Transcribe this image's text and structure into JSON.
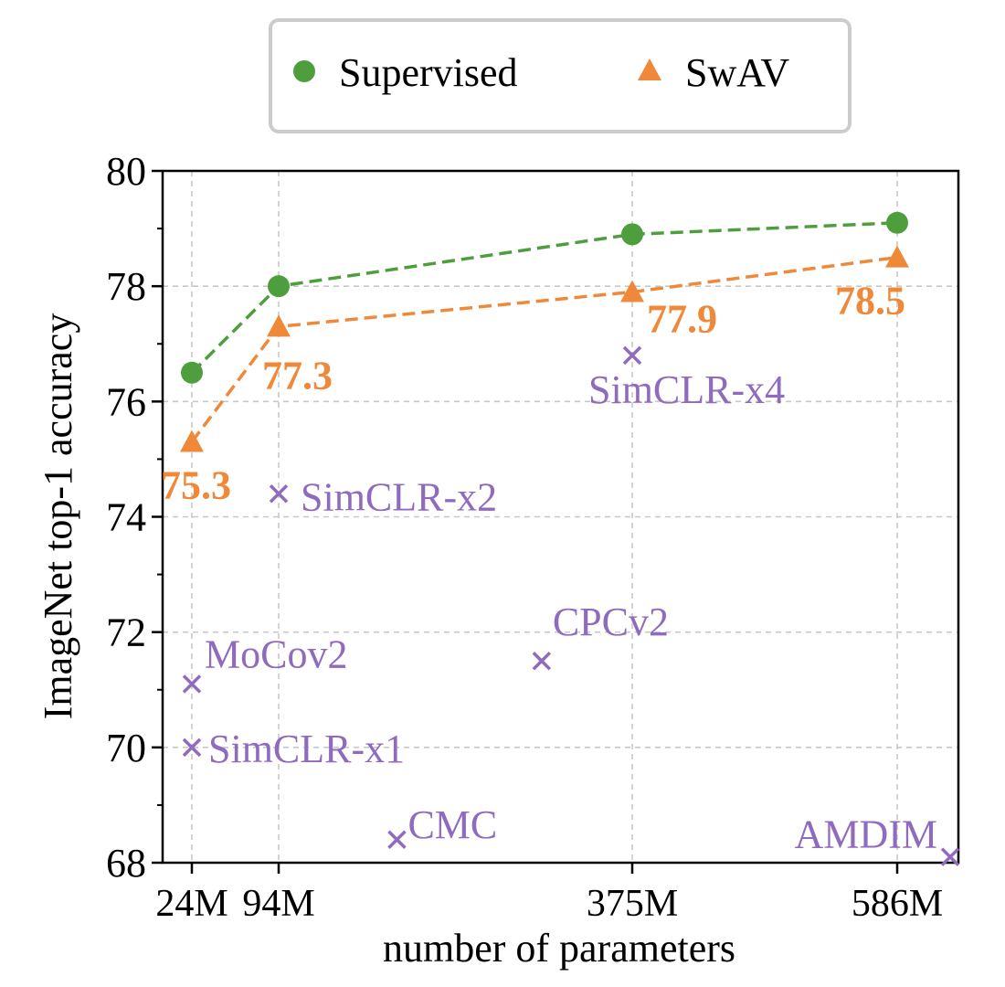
{
  "chart_data": {
    "type": "scatter",
    "xlabel": "number of parameters",
    "ylabel": "ImageNet top-1 accuracy",
    "x_ticks": [
      {
        "value": 24,
        "label": "24M"
      },
      {
        "value": 94,
        "label": "94M"
      },
      {
        "value": 375,
        "label": "375M"
      },
      {
        "value": 586,
        "label": "586M"
      }
    ],
    "xlim": [
      0,
      610
    ],
    "ylim": [
      68,
      80
    ],
    "y_ticks": [
      68,
      70,
      72,
      74,
      76,
      78,
      80
    ],
    "grid": true,
    "legend": {
      "placement": "top-center",
      "entries": [
        {
          "label": "Supervised",
          "marker": "circle",
          "color": "#4f9e3e"
        },
        {
          "label": "SwAV",
          "marker": "triangle",
          "color": "#f0883a"
        }
      ]
    },
    "series": [
      {
        "name": "Supervised",
        "color": "#4f9e3e",
        "marker": "circle",
        "line": "dashed",
        "points": [
          {
            "x": 24,
            "y": 76.5
          },
          {
            "x": 94,
            "y": 78.0
          },
          {
            "x": 375,
            "y": 78.9
          },
          {
            "x": 586,
            "y": 79.1
          }
        ]
      },
      {
        "name": "SwAV",
        "color": "#f0883a",
        "marker": "triangle",
        "line": "dashed",
        "points": [
          {
            "x": 24,
            "y": 75.3,
            "label": "75.3"
          },
          {
            "x": 94,
            "y": 77.3,
            "label": "77.3"
          },
          {
            "x": 375,
            "y": 77.9,
            "label": "77.9"
          },
          {
            "x": 586,
            "y": 78.5,
            "label": "78.5"
          }
        ]
      }
    ],
    "others": {
      "color": "#8f6bbf",
      "marker": "x",
      "points": [
        {
          "name": "MoCov2",
          "x": 24,
          "y": 71.1
        },
        {
          "name": "SimCLR-x1",
          "x": 24,
          "y": 70.0
        },
        {
          "name": "SimCLR-x2",
          "x": 94,
          "y": 74.4
        },
        {
          "name": "CMC",
          "x": 188,
          "y": 68.4
        },
        {
          "name": "CPCv2",
          "x": 303,
          "y": 71.5
        },
        {
          "name": "SimCLR-x4",
          "x": 375,
          "y": 76.8
        },
        {
          "name": "AMDIM",
          "x": 626,
          "y": 68.1
        }
      ]
    }
  }
}
